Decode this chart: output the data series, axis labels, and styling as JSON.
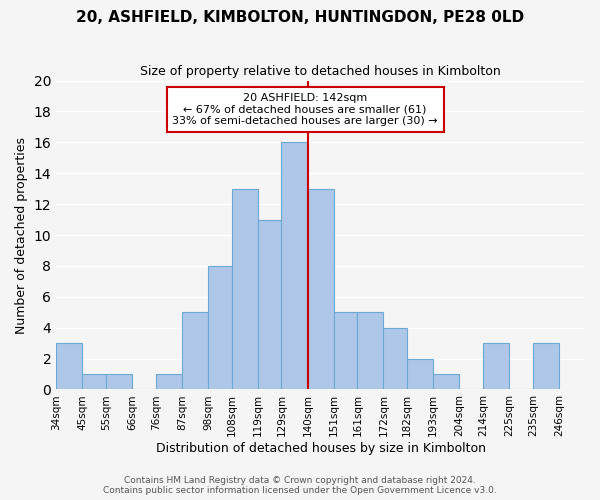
{
  "title": "20, ASHFIELD, KIMBOLTON, HUNTINGDON, PE28 0LD",
  "subtitle": "Size of property relative to detached houses in Kimbolton",
  "xlabel": "Distribution of detached houses by size in Kimbolton",
  "ylabel": "Number of detached properties",
  "bin_labels": [
    "34sqm",
    "45sqm",
    "55sqm",
    "66sqm",
    "76sqm",
    "87sqm",
    "98sqm",
    "108sqm",
    "119sqm",
    "129sqm",
    "140sqm",
    "151sqm",
    "161sqm",
    "172sqm",
    "182sqm",
    "193sqm",
    "204sqm",
    "214sqm",
    "225sqm",
    "235sqm",
    "246sqm"
  ],
  "bin_edges": [
    34,
    45,
    55,
    66,
    76,
    87,
    98,
    108,
    119,
    129,
    140,
    151,
    161,
    172,
    182,
    193,
    204,
    214,
    225,
    235,
    246
  ],
  "counts": [
    3,
    1,
    1,
    0,
    1,
    5,
    8,
    13,
    11,
    16,
    13,
    5,
    5,
    4,
    2,
    1,
    0,
    3,
    0,
    3
  ],
  "bar_color": "#aec6e8",
  "bar_edge_color": "#6aaad4",
  "reference_line_x": 140,
  "reference_line_color": "#cc0000",
  "annotation_title": "20 ASHFIELD: 142sqm",
  "annotation_line1": "← 67% of detached houses are smaller (61)",
  "annotation_line2": "33% of semi-detached houses are larger (30) →",
  "annotation_box_color": "#ffffff",
  "annotation_box_edge_color": "#cc0000",
  "ylim": [
    0,
    20
  ],
  "yticks": [
    0,
    2,
    4,
    6,
    8,
    10,
    12,
    14,
    16,
    18,
    20
  ],
  "footer_line1": "Contains HM Land Registry data © Crown copyright and database right 2024.",
  "footer_line2": "Contains public sector information licensed under the Open Government Licence v3.0.",
  "background_color": "#f5f5f5",
  "grid_color": "#ffffff"
}
